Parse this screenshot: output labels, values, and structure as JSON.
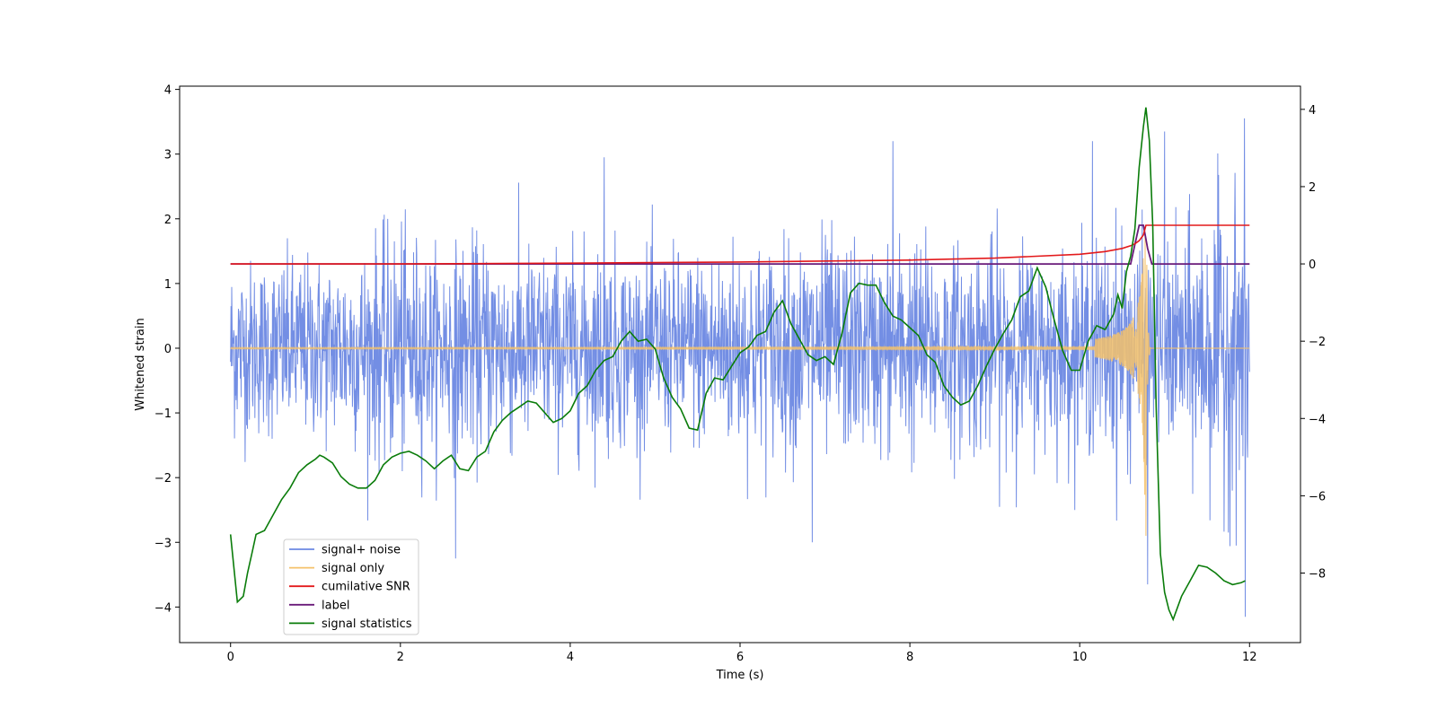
{
  "chart_data": {
    "type": "line",
    "xlabel": "Time (s)",
    "ylabel": "Whitened strain",
    "x_range": [
      -0.6,
      12.6
    ],
    "y_left_range": [
      -4.55,
      4.05
    ],
    "y_right_range": [
      -9.8,
      4.6
    ],
    "x_ticks": [
      0,
      2,
      4,
      6,
      8,
      10,
      12
    ],
    "y_left_ticks": [
      -4,
      -3,
      -2,
      -1,
      0,
      1,
      2,
      3,
      4
    ],
    "y_right_ticks": [
      -8,
      -6,
      -4,
      -2,
      0,
      2,
      4
    ],
    "tick_labels_x": [
      "0",
      "2",
      "4",
      "6",
      "8",
      "10",
      "12"
    ],
    "tick_labels_y_left": [
      "−4",
      "−3",
      "−2",
      "−1",
      "0",
      "1",
      "2",
      "3",
      "4"
    ],
    "tick_labels_y_right": [
      "−8",
      "−6",
      "−4",
      "−2",
      "0",
      "2",
      "4"
    ],
    "grid": false,
    "legend_position": "lower-left",
    "series": [
      {
        "name": "signal+ noise",
        "axis": "left",
        "color": "#6b88e3",
        "description_kind": "noise",
        "x_start": 0,
        "x_end": 12,
        "envelope_top": [
          2.3,
          2.2,
          2.0,
          2.0,
          2.1,
          2.5,
          2.8,
          2.6,
          2.3,
          2.1,
          2.4,
          2.5,
          2.4,
          2.2,
          2.2,
          2.1,
          2.0,
          2.0,
          2.2,
          2.1,
          2.2,
          3.2,
          2.0,
          3.2,
          3.6
        ],
        "envelope_bottom": [
          -2.1,
          -2.3,
          -2.3,
          -2.5,
          -3.2,
          -2.2,
          -2.3,
          -2.5,
          -2.5,
          -2.6,
          -2.2,
          -2.4,
          -2.8,
          -2.6,
          -2.9,
          -2.5,
          -2.9,
          -2.6,
          -2.8,
          -2.5,
          -2.5,
          -2.8,
          -2.4,
          -3.6,
          -4.2
        ],
        "spikes": [
          {
            "x": 4.4,
            "y": 2.95
          },
          {
            "x": 7.8,
            "y": 3.2
          },
          {
            "x": 10.15,
            "y": 3.2
          },
          {
            "x": 10.8,
            "y": 3.65
          },
          {
            "x": 11.0,
            "y": 3.35
          },
          {
            "x": 2.65,
            "y": -3.25
          },
          {
            "x": 6.85,
            "y": -3.0
          },
          {
            "x": 10.8,
            "y": -3.65
          },
          {
            "x": 11.95,
            "y": -4.15
          }
        ]
      },
      {
        "name": "signal only",
        "axis": "left",
        "color": "#f5c26b",
        "description_kind": "chirp",
        "merger_time": 10.78,
        "peak_amplitude": 1.9,
        "min_amplitude": -2.9
      },
      {
        "name": "cumilative SNR",
        "axis": "right",
        "color": "#e31a1c",
        "x": [
          0,
          2,
          4,
          6,
          8,
          9,
          10,
          10.3,
          10.5,
          10.6,
          10.65,
          10.7,
          10.75,
          10.78,
          12
        ],
        "values": [
          0,
          0,
          0.02,
          0.05,
          0.1,
          0.15,
          0.25,
          0.32,
          0.4,
          0.47,
          0.52,
          0.6,
          0.75,
          1.0,
          1.0
        ]
      },
      {
        "name": "label",
        "axis": "right",
        "color": "#6a1b7a",
        "x": [
          0,
          10.6,
          10.65,
          10.7,
          10.75,
          10.8,
          10.85,
          12
        ],
        "values": [
          0,
          0,
          0.5,
          1.0,
          1.0,
          0.4,
          0,
          0
        ]
      },
      {
        "name": "signal statistics",
        "axis": "right",
        "color": "#0a7c0a",
        "x": [
          0,
          0.08,
          0.15,
          0.2,
          0.25,
          0.3,
          0.4,
          0.5,
          0.6,
          0.7,
          0.8,
          0.9,
          1.0,
          1.05,
          1.1,
          1.2,
          1.3,
          1.4,
          1.5,
          1.6,
          1.7,
          1.8,
          1.9,
          2.0,
          2.1,
          2.2,
          2.3,
          2.4,
          2.5,
          2.6,
          2.7,
          2.8,
          2.9,
          3.0,
          3.1,
          3.2,
          3.3,
          3.4,
          3.5,
          3.6,
          3.7,
          3.8,
          3.9,
          4.0,
          4.1,
          4.2,
          4.3,
          4.4,
          4.5,
          4.6,
          4.7,
          4.8,
          4.9,
          5.0,
          5.1,
          5.2,
          5.3,
          5.4,
          5.5,
          5.6,
          5.7,
          5.8,
          5.9,
          6.0,
          6.1,
          6.2,
          6.3,
          6.4,
          6.5,
          6.6,
          6.7,
          6.8,
          6.9,
          7.0,
          7.1,
          7.2,
          7.3,
          7.4,
          7.5,
          7.6,
          7.7,
          7.8,
          7.9,
          8.0,
          8.1,
          8.2,
          8.3,
          8.4,
          8.5,
          8.6,
          8.7,
          8.8,
          8.9,
          9.0,
          9.1,
          9.2,
          9.3,
          9.4,
          9.5,
          9.6,
          9.7,
          9.8,
          9.9,
          10.0,
          10.1,
          10.2,
          10.3,
          10.4,
          10.45,
          10.5,
          10.55,
          10.6,
          10.65,
          10.7,
          10.75,
          10.78,
          10.82,
          10.86,
          10.9,
          10.95,
          11.0,
          11.05,
          11.1,
          11.2,
          11.3,
          11.4,
          11.5,
          11.6,
          11.7,
          11.8,
          11.9,
          11.95
        ],
        "values": [
          -7.0,
          -8.75,
          -8.6,
          -8.0,
          -7.5,
          -7.0,
          -6.9,
          -6.5,
          -6.1,
          -5.8,
          -5.4,
          -5.2,
          -5.05,
          -4.95,
          -5.0,
          -5.15,
          -5.5,
          -5.7,
          -5.8,
          -5.8,
          -5.6,
          -5.2,
          -5.0,
          -4.9,
          -4.85,
          -4.95,
          -5.1,
          -5.3,
          -5.1,
          -4.95,
          -5.3,
          -5.35,
          -5.0,
          -4.85,
          -4.35,
          -4.05,
          -3.85,
          -3.7,
          -3.55,
          -3.6,
          -3.85,
          -4.1,
          -4.0,
          -3.8,
          -3.35,
          -3.15,
          -2.75,
          -2.5,
          -2.4,
          -2.0,
          -1.75,
          -2.0,
          -1.95,
          -2.2,
          -2.95,
          -3.45,
          -3.75,
          -4.25,
          -4.3,
          -3.35,
          -2.95,
          -3.0,
          -2.65,
          -2.3,
          -2.15,
          -1.85,
          -1.75,
          -1.25,
          -0.95,
          -1.55,
          -1.95,
          -2.35,
          -2.5,
          -2.4,
          -2.6,
          -1.8,
          -0.75,
          -0.5,
          -0.55,
          -0.55,
          -1.0,
          -1.35,
          -1.45,
          -1.65,
          -1.85,
          -2.35,
          -2.55,
          -3.15,
          -3.45,
          -3.65,
          -3.55,
          -3.15,
          -2.65,
          -2.2,
          -1.8,
          -1.45,
          -0.85,
          -0.7,
          -0.1,
          -0.6,
          -1.45,
          -2.25,
          -2.75,
          -2.75,
          -2.0,
          -1.6,
          -1.7,
          -1.3,
          -0.8,
          -1.15,
          -0.2,
          0.2,
          0.9,
          2.5,
          3.55,
          4.05,
          3.2,
          1.0,
          -3.7,
          -7.5,
          -8.5,
          -8.95,
          -9.2,
          -8.6,
          -8.2,
          -7.8,
          -7.85,
          -8.0,
          -8.2,
          -8.3,
          -8.25,
          -8.2
        ]
      }
    ]
  }
}
